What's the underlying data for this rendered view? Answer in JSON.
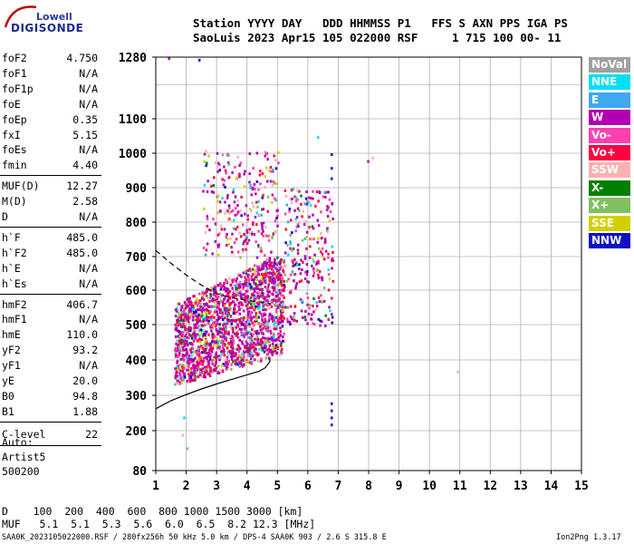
{
  "logo": {
    "top_text": "Lowell",
    "bottom_text": "DIGISONDE"
  },
  "header": {
    "line1": "Station YYYY DAY   DDD HHMMSS P1   FFS S AXN PPS IGA PS",
    "line2": "SaoLuis 2023 Apr15 105 022000 RSF     1 715 100 00- 11"
  },
  "params": {
    "group1": [
      {
        "name": "foF2",
        "value": "4.750"
      },
      {
        "name": "foF1",
        "value": "N/A"
      },
      {
        "name": "foF1p",
        "value": "N/A"
      },
      {
        "name": "foE",
        "value": "N/A"
      },
      {
        "name": "foEp",
        "value": "0.35"
      },
      {
        "name": "fxI",
        "value": "5.15"
      },
      {
        "name": "foEs",
        "value": "N/A"
      },
      {
        "name": "fmin",
        "value": "4.40"
      }
    ],
    "group2": [
      {
        "name": "MUF(D)",
        "value": "12.27"
      },
      {
        "name": "M(D)",
        "value": "2.58"
      },
      {
        "name": "D",
        "value": "N/A"
      }
    ],
    "group3": [
      {
        "name": "h`F",
        "value": "485.0"
      },
      {
        "name": "h`F2",
        "value": "485.0"
      },
      {
        "name": "h`E",
        "value": "N/A"
      },
      {
        "name": "h`Es",
        "value": "N/A"
      }
    ],
    "group4": [
      {
        "name": "hmF2",
        "value": "406.7"
      },
      {
        "name": "hmF1",
        "value": "N/A"
      },
      {
        "name": "hmE",
        "value": "110.0"
      },
      {
        "name": "yF2",
        "value": "93.2"
      },
      {
        "name": "yF1",
        "value": "N/A"
      },
      {
        "name": "yE",
        "value": "20.0"
      },
      {
        "name": "B0",
        "value": "94.8"
      },
      {
        "name": "B1",
        "value": "1.88"
      }
    ],
    "clevel": {
      "name": "C-level",
      "value": "22"
    }
  },
  "autoscaling": {
    "line1": "Auto:",
    "line2": "Artist5",
    "line3": "500200"
  },
  "legend": [
    {
      "label": "NoVal",
      "color": "#a0a0a0"
    },
    {
      "label": "NNE",
      "color": "#00e0f0"
    },
    {
      "label": "E",
      "color": "#40a8f0"
    },
    {
      "label": "W",
      "color": "#b000b0"
    },
    {
      "label": "Vo-",
      "color": "#ff40b0"
    },
    {
      "label": "Vo+",
      "color": "#ff0040"
    },
    {
      "label": "SSW",
      "color": "#ffb0b0"
    },
    {
      "label": "X-",
      "color": "#008000"
    },
    {
      "label": "X+",
      "color": "#80c060"
    },
    {
      "label": "SSE",
      "color": "#d0d000"
    },
    {
      "label": "NNW",
      "color": "#1010c0"
    }
  ],
  "muf_table": {
    "d_row": "D    100  200  400  600  800 1000 1500 3000 [km]",
    "muf_row": "MUF   5.1  5.1  5.3  5.6  6.0  6.5  8.2 12.3 [MHz]"
  },
  "footer": {
    "left": "SAA0K_2023105022000.RSF / 280fx256h 50 kHz 5.0 km / DPS-4 SAA0K 903 / 2.6 S 315.8 E",
    "right": "Ion2Png 1.3.17"
  },
  "chart_data": {
    "type": "scatter",
    "title": "",
    "xlabel": "",
    "ylabel": "",
    "xlim": [
      1,
      15
    ],
    "ylim": [
      80,
      1280
    ],
    "x_ticks": [
      1,
      2,
      3,
      4,
      5,
      6,
      7,
      8,
      9,
      10,
      11,
      12,
      13,
      14,
      15
    ],
    "y_ticks": [
      80,
      200,
      300,
      400,
      500,
      600,
      700,
      800,
      900,
      1000,
      1100,
      1280
    ],
    "grid": true,
    "legend_position": "right",
    "y_scale": "nonlinear (virtual height ionogram axis)",
    "series": [
      {
        "name": "",
        "style": "solid",
        "points": [
          [
            1,
            262
          ],
          [
            1.5,
            285
          ],
          [
            2,
            302
          ],
          [
            2.5,
            318
          ],
          [
            3,
            332
          ],
          [
            3.5,
            345
          ],
          [
            4,
            358
          ],
          [
            4.4,
            368
          ],
          [
            4.6,
            378
          ],
          [
            4.75,
            395
          ],
          [
            4.75,
            405
          ]
        ]
      },
      {
        "name": "",
        "style": "dashed",
        "points": [
          [
            1,
            718
          ],
          [
            1.5,
            680
          ],
          [
            2,
            645
          ],
          [
            2.5,
            615
          ],
          [
            3,
            590
          ],
          [
            3.5,
            578
          ],
          [
            4,
            570
          ],
          [
            4.5,
            565
          ],
          [
            4.75,
            560
          ]
        ]
      }
    ],
    "echo_regions": [
      {
        "x_min": 1.6,
        "x_max": 5.2,
        "y_min": 330,
        "y_max": 700,
        "density": "dense"
      },
      {
        "x_min": 2.5,
        "x_max": 5.0,
        "y_min": 700,
        "y_max": 1010,
        "density": "sparse"
      },
      {
        "x_min": 5.2,
        "x_max": 6.8,
        "y_min": 500,
        "y_max": 900,
        "density": "sparse"
      }
    ],
    "isolated_echoes": [
      {
        "x": 6.75,
        "y": 1000,
        "color": "#1010c0"
      },
      {
        "x": 6.75,
        "y": 960,
        "color": "#1010c0"
      },
      {
        "x": 6.75,
        "y": 930,
        "color": "#1010c0"
      },
      {
        "x": 6.75,
        "y": 280,
        "color": "#1010c0"
      },
      {
        "x": 6.75,
        "y": 260,
        "color": "#1010c0"
      },
      {
        "x": 6.75,
        "y": 240,
        "color": "#1010c0"
      },
      {
        "x": 6.75,
        "y": 220,
        "color": "#1010c0"
      },
      {
        "x": 6.3,
        "y": 1050,
        "color": "#00e0f0"
      },
      {
        "x": 7.95,
        "y": 980,
        "color": "#b000b0"
      },
      {
        "x": 8.1,
        "y": 990,
        "color": "#ffb0b0"
      },
      {
        "x": 2.4,
        "y": 1275,
        "color": "#1010c0"
      },
      {
        "x": 1.4,
        "y": 1280,
        "color": "#b000b0"
      },
      {
        "x": 10.9,
        "y": 370,
        "color": "#ffb0b0"
      },
      {
        "x": 1.85,
        "y": 190,
        "color": "#ffb0b0"
      },
      {
        "x": 1.9,
        "y": 240,
        "color": "#00e0f0"
      },
      {
        "x": 2.0,
        "y": 150,
        "color": "#80c060"
      }
    ]
  }
}
